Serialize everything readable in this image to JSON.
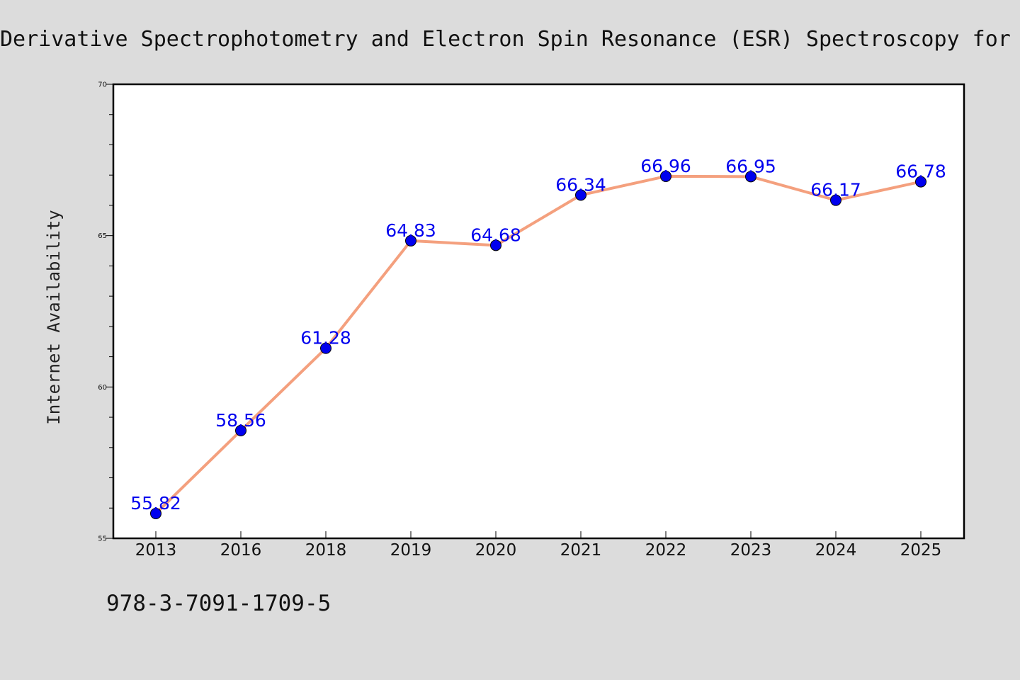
{
  "chart_data": {
    "type": "line",
    "title": "Derivative Spectrophotometry and Electron Spin Resonance (ESR) Spectroscopy for",
    "xlabel": "",
    "ylabel": "Internet Availability",
    "categories": [
      "2013",
      "2016",
      "2018",
      "2019",
      "2020",
      "2021",
      "2022",
      "2023",
      "2024",
      "2025"
    ],
    "series": [
      {
        "values": [
          55.82,
          58.56,
          61.28,
          64.83,
          64.68,
          66.34,
          66.96,
          66.95,
          66.17,
          66.78
        ],
        "line_color": "#f4a07e",
        "marker_color": "#0000ee"
      }
    ],
    "data_labels": [
      "55.82",
      "58.56",
      "61.28",
      "64.83",
      "64.68",
      "66.34",
      "66.96",
      "66.95",
      "66.17",
      "66.78"
    ],
    "ylim": [
      55,
      70
    ],
    "yticks": [
      "55",
      "60",
      "65",
      "70"
    ],
    "grid": false,
    "legend": "none"
  },
  "footer": {
    "isbn": "978-3-7091-1709-5"
  },
  "colors": {
    "background": "#dcdcdc",
    "plot_background": "#ffffff"
  }
}
